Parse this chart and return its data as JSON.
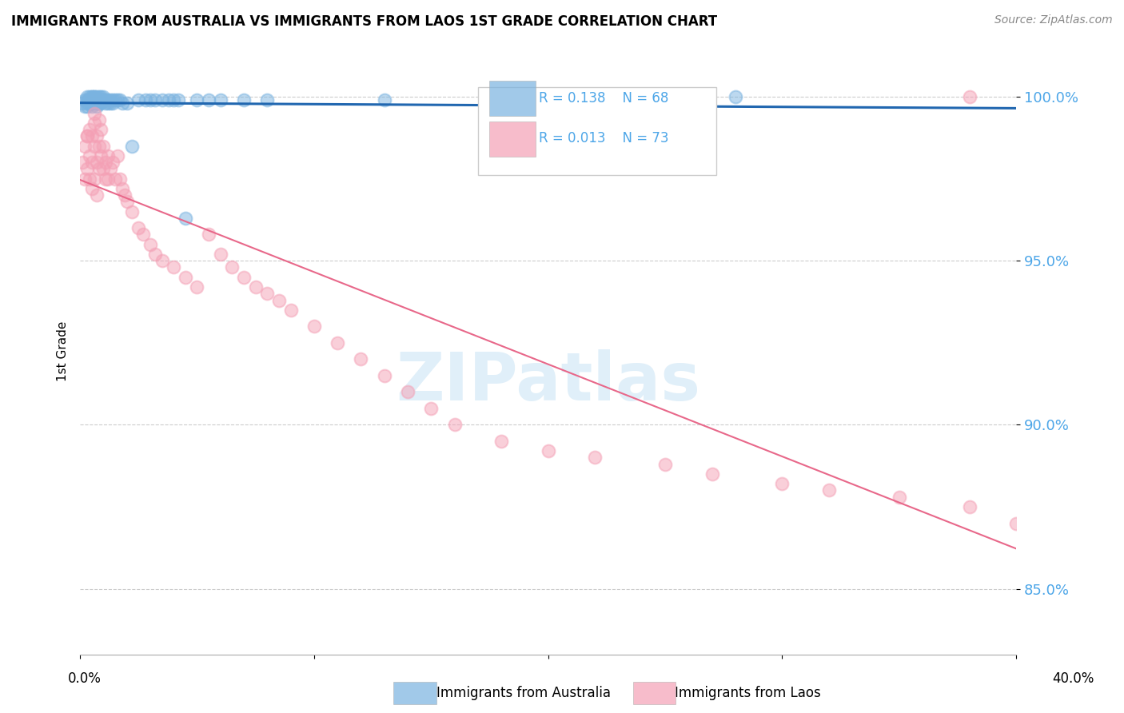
{
  "title": "IMMIGRANTS FROM AUSTRALIA VS IMMIGRANTS FROM LAOS 1ST GRADE CORRELATION CHART",
  "source": "Source: ZipAtlas.com",
  "ylabel": "1st Grade",
  "ytick_labels": [
    "85.0%",
    "90.0%",
    "95.0%",
    "100.0%"
  ],
  "ytick_values": [
    0.85,
    0.9,
    0.95,
    1.0
  ],
  "xlim": [
    0.0,
    0.4
  ],
  "ylim": [
    0.83,
    1.015
  ],
  "legend_r_australia": "R = 0.138",
  "legend_n_australia": "N = 68",
  "legend_r_laos": "R = 0.013",
  "legend_n_laos": "N = 73",
  "color_australia": "#7ab3e0",
  "color_laos": "#f4a0b5",
  "color_trendline_australia": "#2167b0",
  "color_trendline_laos": "#e8688a",
  "color_axis_labels": "#4da6e8",
  "watermark_text": "ZIPatlas",
  "australia_x": [
    0.001,
    0.002,
    0.002,
    0.003,
    0.003,
    0.003,
    0.003,
    0.004,
    0.004,
    0.004,
    0.004,
    0.005,
    0.005,
    0.005,
    0.005,
    0.005,
    0.005,
    0.006,
    0.006,
    0.006,
    0.006,
    0.006,
    0.007,
    0.007,
    0.007,
    0.007,
    0.007,
    0.008,
    0.008,
    0.008,
    0.008,
    0.009,
    0.009,
    0.009,
    0.009,
    0.01,
    0.01,
    0.01,
    0.011,
    0.011,
    0.012,
    0.012,
    0.013,
    0.013,
    0.014,
    0.014,
    0.015,
    0.016,
    0.017,
    0.018,
    0.02,
    0.022,
    0.025,
    0.028,
    0.03,
    0.032,
    0.035,
    0.038,
    0.04,
    0.042,
    0.045,
    0.05,
    0.055,
    0.06,
    0.07,
    0.08,
    0.13,
    0.28
  ],
  "australia_y": [
    0.998,
    0.999,
    0.997,
    1.0,
    0.999,
    0.998,
    0.997,
    1.0,
    0.999,
    0.999,
    0.998,
    1.0,
    1.0,
    0.999,
    0.999,
    0.998,
    0.997,
    1.0,
    1.0,
    0.999,
    0.999,
    0.998,
    1.0,
    0.999,
    0.999,
    0.998,
    0.997,
    1.0,
    0.999,
    0.998,
    0.998,
    1.0,
    0.999,
    0.999,
    0.998,
    1.0,
    0.999,
    0.999,
    0.999,
    0.998,
    0.999,
    0.998,
    0.999,
    0.998,
    0.999,
    0.998,
    0.999,
    0.999,
    0.999,
    0.998,
    0.998,
    0.985,
    0.999,
    0.999,
    0.999,
    0.999,
    0.999,
    0.999,
    0.999,
    0.999,
    0.963,
    0.999,
    0.999,
    0.999,
    0.999,
    0.999,
    0.999,
    1.0
  ],
  "laos_x": [
    0.001,
    0.002,
    0.002,
    0.003,
    0.003,
    0.004,
    0.004,
    0.004,
    0.005,
    0.005,
    0.005,
    0.006,
    0.006,
    0.006,
    0.007,
    0.007,
    0.007,
    0.008,
    0.008,
    0.009,
    0.009,
    0.01,
    0.01,
    0.011,
    0.011,
    0.012,
    0.012,
    0.013,
    0.014,
    0.015,
    0.016,
    0.017,
    0.018,
    0.019,
    0.02,
    0.022,
    0.025,
    0.027,
    0.03,
    0.032,
    0.035,
    0.04,
    0.045,
    0.05,
    0.055,
    0.06,
    0.065,
    0.07,
    0.075,
    0.08,
    0.085,
    0.09,
    0.1,
    0.11,
    0.12,
    0.13,
    0.14,
    0.15,
    0.16,
    0.18,
    0.2,
    0.22,
    0.25,
    0.27,
    0.3,
    0.32,
    0.35,
    0.38,
    0.4,
    0.003,
    0.006,
    0.008,
    0.38
  ],
  "laos_y": [
    0.98,
    0.985,
    0.975,
    0.988,
    0.978,
    0.99,
    0.982,
    0.975,
    0.988,
    0.98,
    0.972,
    0.992,
    0.985,
    0.975,
    0.988,
    0.98,
    0.97,
    0.985,
    0.978,
    0.99,
    0.982,
    0.985,
    0.978,
    0.98,
    0.975,
    0.982,
    0.975,
    0.978,
    0.98,
    0.975,
    0.982,
    0.975,
    0.972,
    0.97,
    0.968,
    0.965,
    0.96,
    0.958,
    0.955,
    0.952,
    0.95,
    0.948,
    0.945,
    0.942,
    0.958,
    0.952,
    0.948,
    0.945,
    0.942,
    0.94,
    0.938,
    0.935,
    0.93,
    0.925,
    0.92,
    0.915,
    0.91,
    0.905,
    0.9,
    0.895,
    0.892,
    0.89,
    0.888,
    0.885,
    0.882,
    0.88,
    0.878,
    0.875,
    0.87,
    0.988,
    0.995,
    0.993,
    1.0
  ]
}
